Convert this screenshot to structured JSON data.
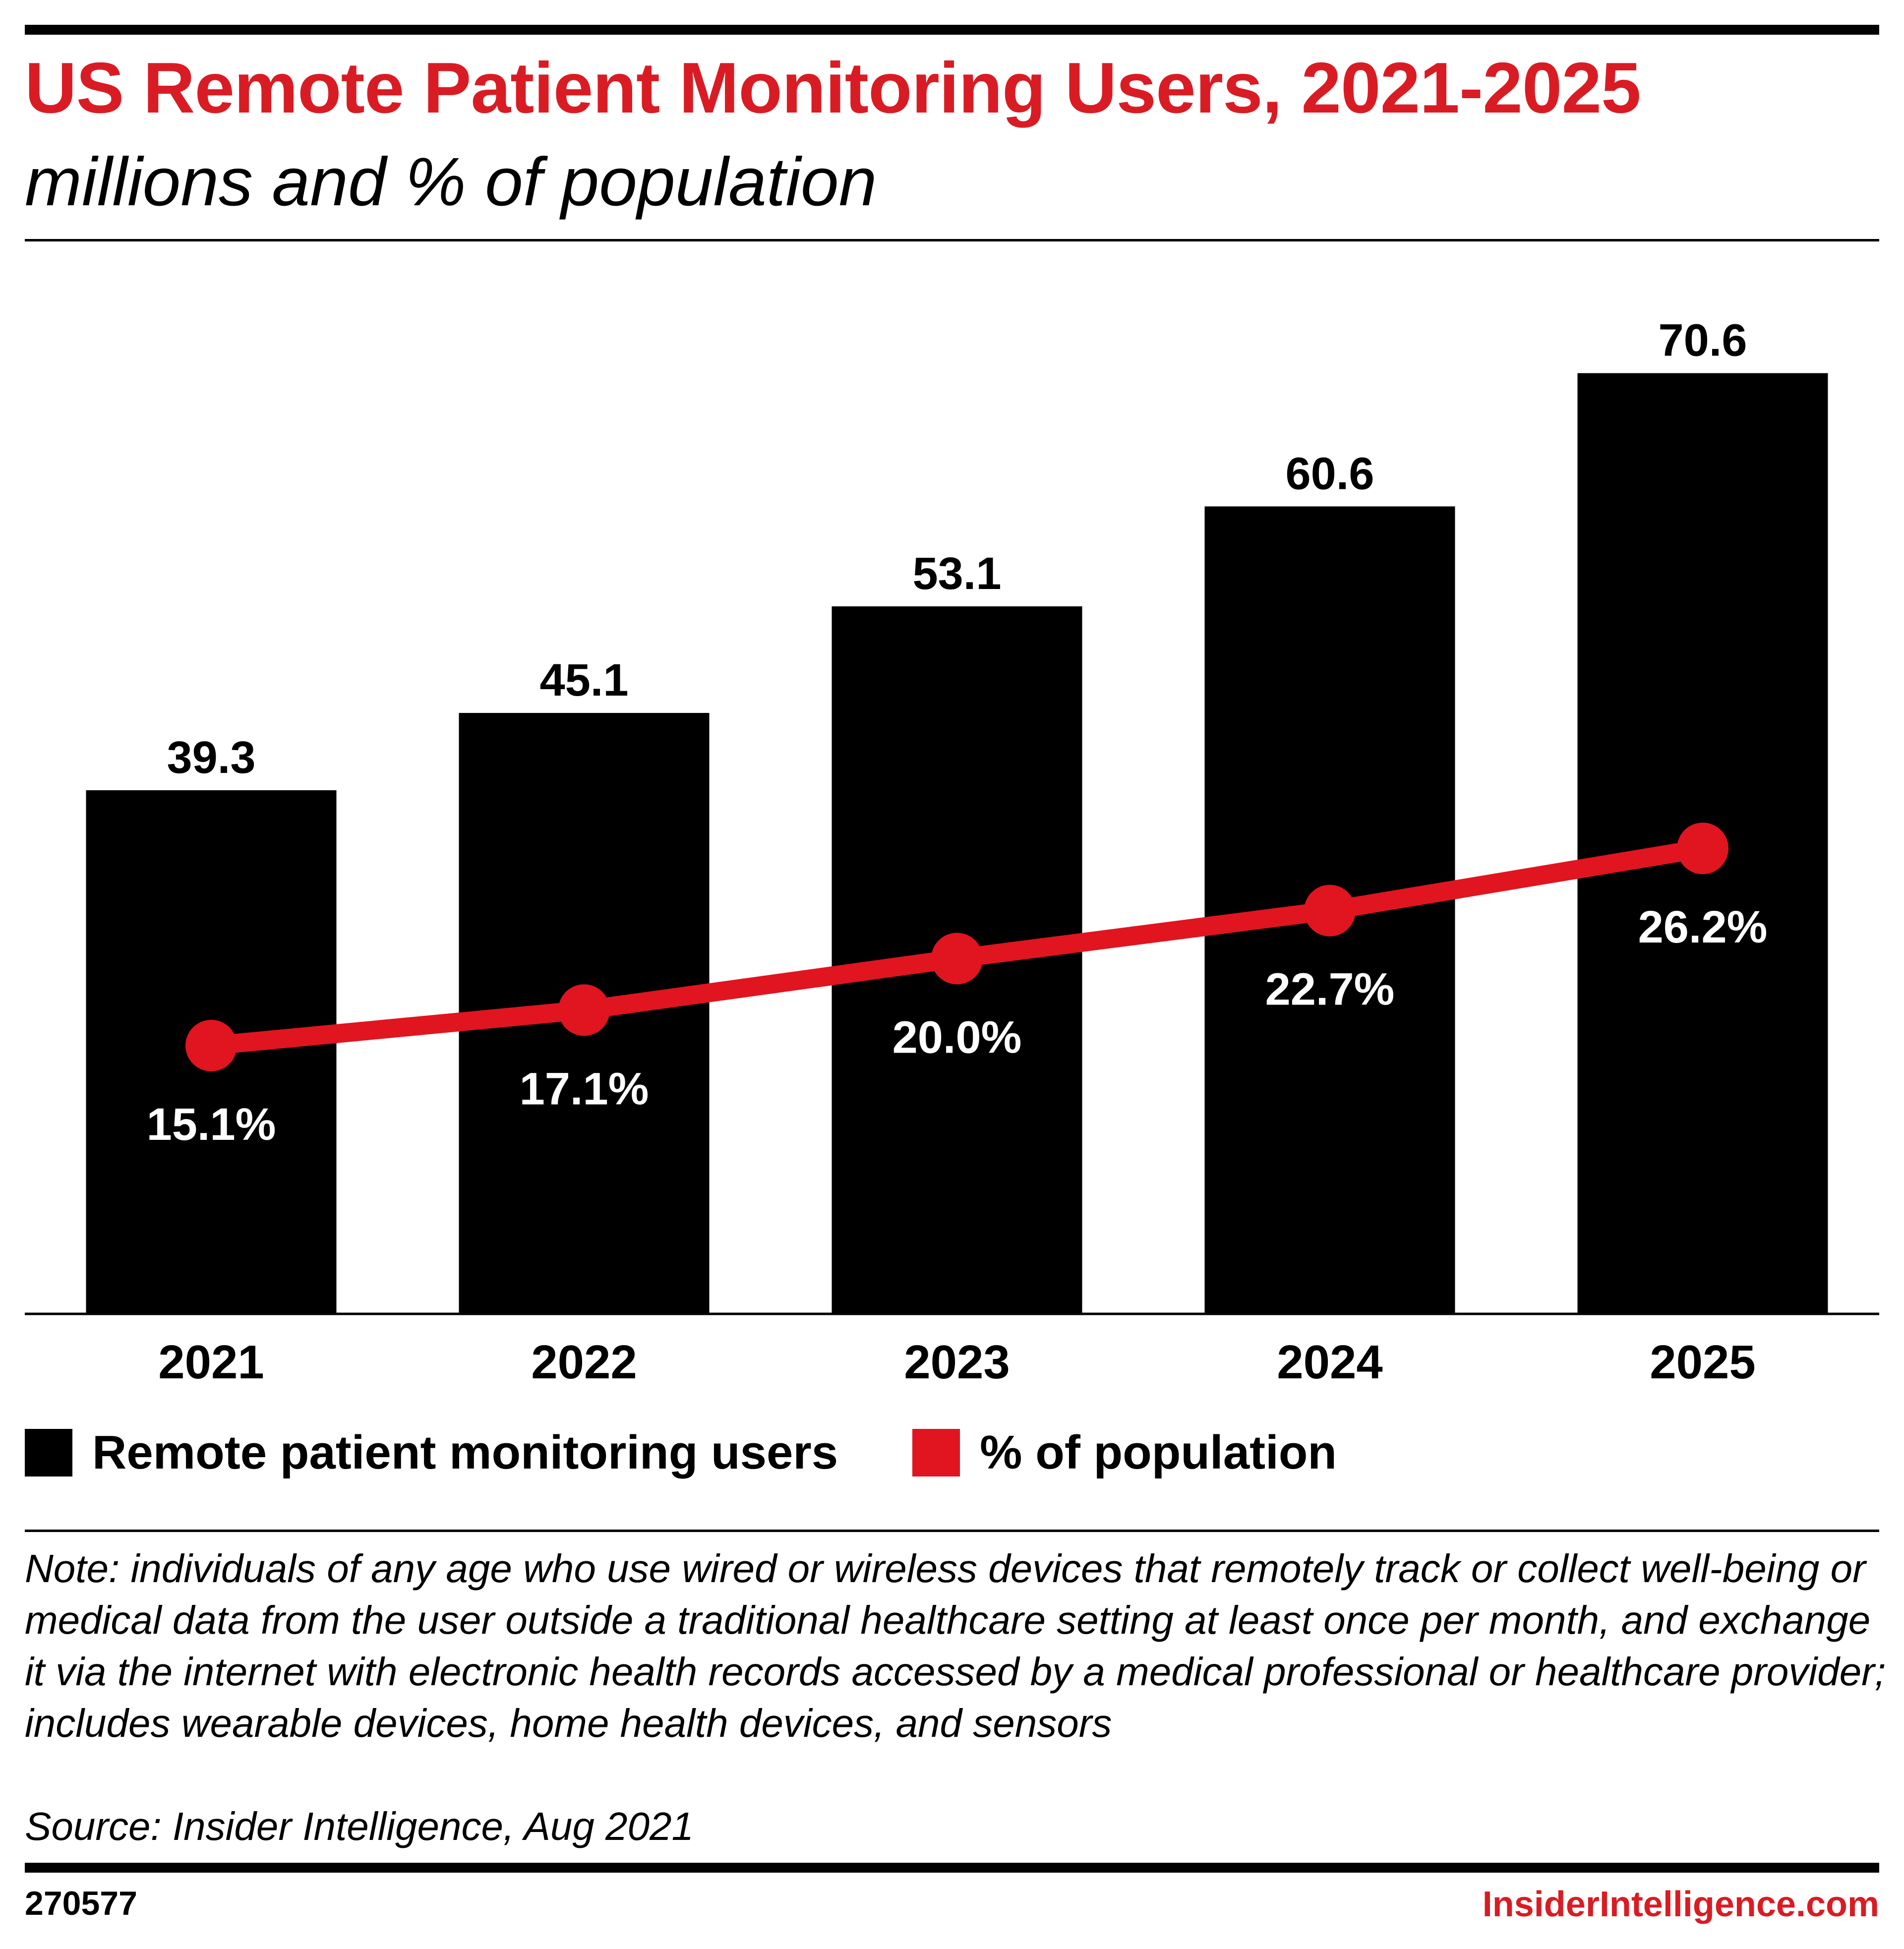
{
  "header": {
    "title": "US Remote Patient Monitoring Users, 2021-2025",
    "subtitle": "millions and % of population"
  },
  "colors": {
    "title": "#d91c24",
    "bar": "#000000",
    "line": "#e0151f",
    "label_on_bar": "#ffffff",
    "text": "#000000"
  },
  "chart_data": {
    "type": "bar",
    "title": "US Remote Patient Monitoring Users, 2021-2025",
    "subtitle": "millions and % of population",
    "xlabel": "",
    "ylabel": "",
    "grid": false,
    "categories": [
      "2021",
      "2022",
      "2023",
      "2024",
      "2025"
    ],
    "series": [
      {
        "name": "Remote patient monitoring users",
        "kind": "bar",
        "unit": "millions",
        "values": [
          39.3,
          45.1,
          53.1,
          60.6,
          70.6
        ],
        "labels": [
          "39.3",
          "45.1",
          "53.1",
          "60.6",
          "70.6"
        ]
      },
      {
        "name": "% of population",
        "kind": "line",
        "unit": "%",
        "values": [
          15.1,
          17.1,
          20.0,
          22.7,
          26.2
        ],
        "labels": [
          "15.1%",
          "17.1%",
          "20.0%",
          "22.7%",
          "26.2%"
        ]
      }
    ],
    "ylim_bar": [
      0,
      80
    ],
    "ylim_line": [
      0,
      60
    ],
    "legend_position": "bottom-left"
  },
  "legend": {
    "bars_label": "Remote patient monitoring users",
    "line_label": "% of population"
  },
  "footer": {
    "note": "Note: individuals of any age who use wired or wireless devices that remotely track or collect well-being or medical data from the user outside a traditional healthcare setting at least once per month, and exchange it via the internet with electronic health records accessed by a medical professional or healthcare provider; includes wearable devices, home health devices, and sensors",
    "source": "Source: Insider Intelligence, Aug 2021",
    "chart_id": "270577",
    "brand": "InsiderIntelligence.com"
  }
}
